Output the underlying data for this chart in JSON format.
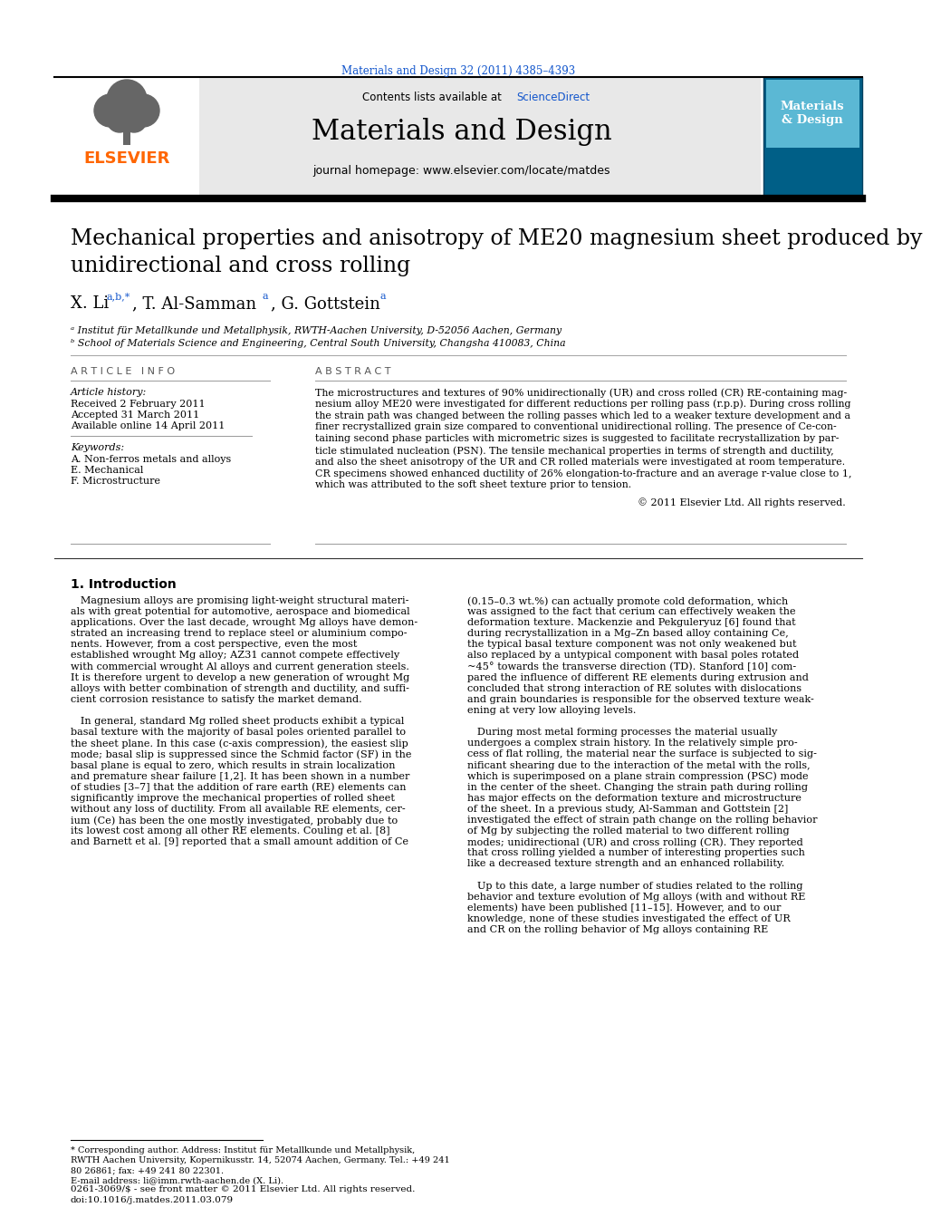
{
  "journal_ref": "Materials and Design 32 (2011) 4385–4393",
  "journal_name": "Materials and Design",
  "journal_homepage": "journal homepage: www.elsevier.com/locate/matdes",
  "contents_text": "Contents lists available at ",
  "sciencedirect_text": "ScienceDirect",
  "title_line1": "Mechanical properties and anisotropy of ME20 magnesium sheet produced by",
  "title_line2": "unidirectional and cross rolling",
  "affiliation_a": "ᵃ Institut für Metallkunde und Metallphysik, RWTH-Aachen University, D-52056 Aachen, Germany",
  "affiliation_b": "ᵇ School of Materials Science and Engineering, Central South University, Changsha 410083, China",
  "article_info_header": "A R T I C L E   I N F O",
  "abstract_header": "A B S T R A C T",
  "article_history_label": "Article history:",
  "received": "Received 2 February 2011",
  "accepted": "Accepted 31 March 2011",
  "available": "Available online 14 April 2011",
  "keywords_label": "Keywords:",
  "keyword1": "A. Non-ferros metals and alloys",
  "keyword2": "E. Mechanical",
  "keyword3": "F. Microstructure",
  "copyright": "© 2011 Elsevier Ltd. All rights reserved.",
  "intro_header": "1. Introduction",
  "footnote1a": "* Corresponding author. Address: Institut für Metallkunde und Metallphysik,",
  "footnote1b": "RWTH Aachen University, Kopernikusstr. 14, 52074 Aachen, Germany. Tel.: +49 241",
  "footnote1c": "80 26861; fax: +49 241 80 22301.",
  "footnote2": "E-mail address: li@imm.rwth-aachen.de (X. Li).",
  "footer_left": "0261-3069/$ - see front matter © 2011 Elsevier Ltd. All rights reserved.",
  "footer_doi": "doi:10.1016/j.matdes.2011.03.079",
  "elsevier_color": "#FF6600",
  "link_color": "#1155CC",
  "header_bg": "#E8E8E8",
  "abstract_lines": [
    "The microstructures and textures of 90% unidirectionally (UR) and cross rolled (CR) RE-containing mag-",
    "nesium alloy ME20 were investigated for different reductions per rolling pass (r.p.p). During cross rolling",
    "the strain path was changed between the rolling passes which led to a weaker texture development and a",
    "finer recrystallized grain size compared to conventional unidirectional rolling. The presence of Ce-con-",
    "taining second phase particles with micrometric sizes is suggested to facilitate recrystallization by par-",
    "ticle stimulated nucleation (PSN). The tensile mechanical properties in terms of strength and ductility,",
    "and also the sheet anisotropy of the UR and CR rolled materials were investigated at room temperature.",
    "CR specimens showed enhanced ductility of 26% elongation-to-fracture and an average r-value close to 1,",
    "which was attributed to the soft sheet texture prior to tension."
  ],
  "intro_col1_lines": [
    "   Magnesium alloys are promising light-weight structural materi-",
    "als with great potential for automotive, aerospace and biomedical",
    "applications. Over the last decade, wrought Mg alloys have demon-",
    "strated an increasing trend to replace steel or aluminium compo-",
    "nents. However, from a cost perspective, even the most",
    "established wrought Mg alloy; AZ31 cannot compete effectively",
    "with commercial wrought Al alloys and current generation steels.",
    "It is therefore urgent to develop a new generation of wrought Mg",
    "alloys with better combination of strength and ductility, and suffi-",
    "cient corrosion resistance to satisfy the market demand.",
    "",
    "   In general, standard Mg rolled sheet products exhibit a typical",
    "basal texture with the majority of basal poles oriented parallel to",
    "the sheet plane. In this case (c-axis compression), the easiest slip",
    "mode; basal slip is suppressed since the Schmid factor (SF) in the",
    "basal plane is equal to zero, which results in strain localization",
    "and premature shear failure [1,2]. It has been shown in a number",
    "of studies [3–7] that the addition of rare earth (RE) elements can",
    "significantly improve the mechanical properties of rolled sheet",
    "without any loss of ductility. From all available RE elements, cer-",
    "ium (Ce) has been the one mostly investigated, probably due to",
    "its lowest cost among all other RE elements. Couling et al. [8]",
    "and Barnett et al. [9] reported that a small amount addition of Ce"
  ],
  "intro_col2_lines": [
    "(0.15–0.3 wt.%) can actually promote cold deformation, which",
    "was assigned to the fact that cerium can effectively weaken the",
    "deformation texture. Mackenzie and Pekguleryuz [6] found that",
    "during recrystallization in a Mg–Zn based alloy containing Ce,",
    "the typical basal texture component was not only weakened but",
    "also replaced by a untypical component with basal poles rotated",
    "~45° towards the transverse direction (TD). Stanford [10] com-",
    "pared the influence of different RE elements during extrusion and",
    "concluded that strong interaction of RE solutes with dislocations",
    "and grain boundaries is responsible for the observed texture weak-",
    "ening at very low alloying levels.",
    "",
    "   During most metal forming processes the material usually",
    "undergoes a complex strain history. In the relatively simple pro-",
    "cess of flat rolling, the material near the surface is subjected to sig-",
    "nificant shearing due to the interaction of the metal with the rolls,",
    "which is superimposed on a plane strain compression (PSC) mode",
    "in the center of the sheet. Changing the strain path during rolling",
    "has major effects on the deformation texture and microstructure",
    "of the sheet. In a previous study, Al-Samman and Gottstein [2]",
    "investigated the effect of strain path change on the rolling behavior",
    "of Mg by subjecting the rolled material to two different rolling",
    "modes; unidirectional (UR) and cross rolling (CR). They reported",
    "that cross rolling yielded a number of interesting properties such",
    "like a decreased texture strength and an enhanced rollability.",
    "",
    "   Up to this date, a large number of studies related to the rolling",
    "behavior and texture evolution of Mg alloys (with and without RE",
    "elements) have been published [11–15]. However, and to our",
    "knowledge, none of these studies investigated the effect of UR",
    "and CR on the rolling behavior of Mg alloys containing RE"
  ]
}
